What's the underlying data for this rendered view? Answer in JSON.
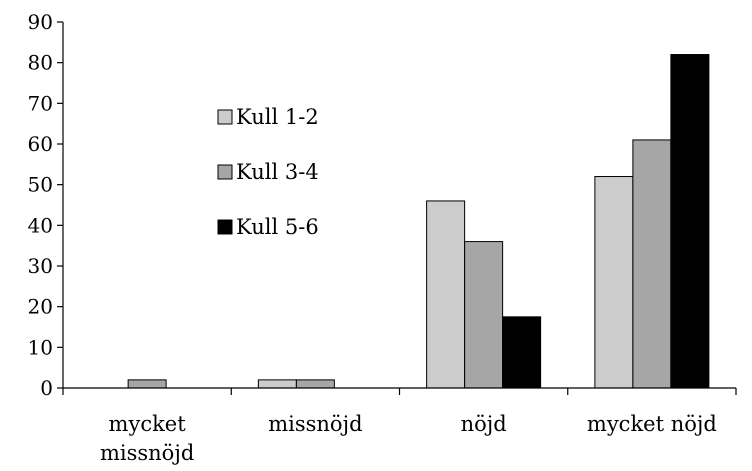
{
  "chart_data": {
    "type": "bar",
    "categories": [
      "mycket\nmissnöjd",
      "missnöjd",
      "nöjd",
      "mycket nöjd"
    ],
    "series": [
      {
        "name": "Kull 1-2",
        "values": [
          0,
          2,
          46,
          52
        ],
        "color": "#cccccc"
      },
      {
        "name": "Kull 3-4",
        "values": [
          2,
          2,
          36,
          61
        ],
        "color": "#a6a6a6"
      },
      {
        "name": "Kull 5-6",
        "values": [
          0,
          0,
          17.5,
          82
        ],
        "color": "#000000"
      }
    ],
    "y_ticks": [
      0,
      10,
      20,
      30,
      40,
      50,
      60,
      70,
      80,
      90
    ],
    "ylim": [
      0,
      90
    ],
    "grid": false,
    "legend_position": "center-left"
  }
}
